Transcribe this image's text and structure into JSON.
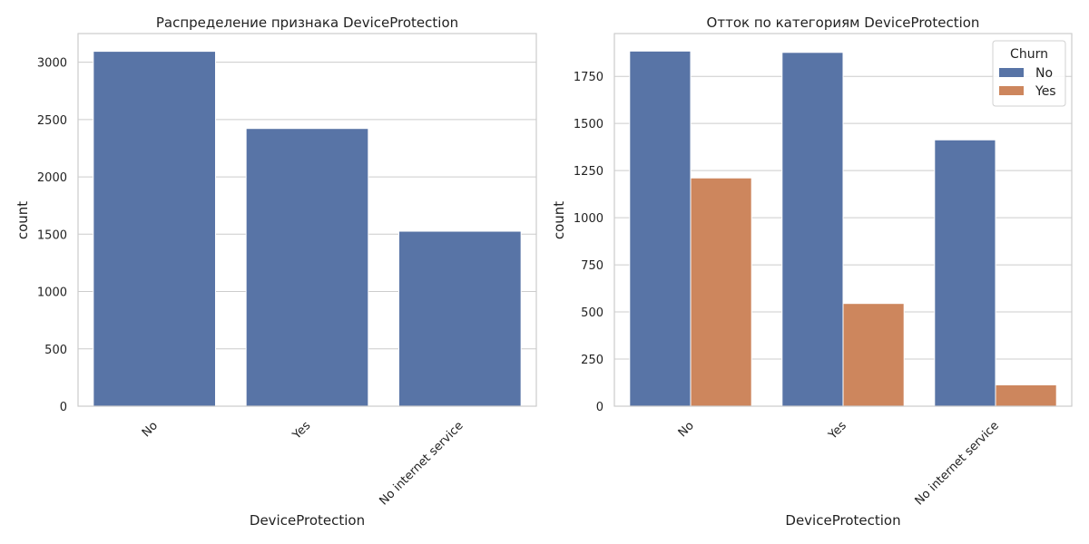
{
  "colors": {
    "series_no": "#5874a6",
    "series_yes": "#cd865d",
    "grid": "#cccccc",
    "axes": "#cccccc",
    "text": "#222222"
  },
  "chart_data": [
    {
      "type": "bar",
      "title": "Распределение признака DeviceProtection",
      "xlabel": "DeviceProtection",
      "ylabel": "count",
      "categories": [
        "No",
        "Yes",
        "No internet service"
      ],
      "values": [
        3095,
        2422,
        1526
      ],
      "ylim": [
        0,
        3250
      ],
      "yticks": [
        0,
        500,
        1000,
        1500,
        2000,
        2500,
        3000
      ],
      "grid": "horizontal",
      "legend": null
    },
    {
      "type": "bar",
      "title": "Отток по категориям DeviceProtection",
      "xlabel": "DeviceProtection",
      "ylabel": "count",
      "categories": [
        "No",
        "Yes",
        "No internet service"
      ],
      "series": [
        {
          "name": "No",
          "values": [
            1884,
            1877,
            1413
          ]
        },
        {
          "name": "Yes",
          "values": [
            1211,
            545,
            113
          ]
        }
      ],
      "ylim": [
        0,
        1977
      ],
      "yticks": [
        0,
        250,
        500,
        750,
        1000,
        1250,
        1500,
        1750
      ],
      "grid": "horizontal",
      "legend": {
        "title": "Churn",
        "placement": "top-right"
      }
    }
  ]
}
